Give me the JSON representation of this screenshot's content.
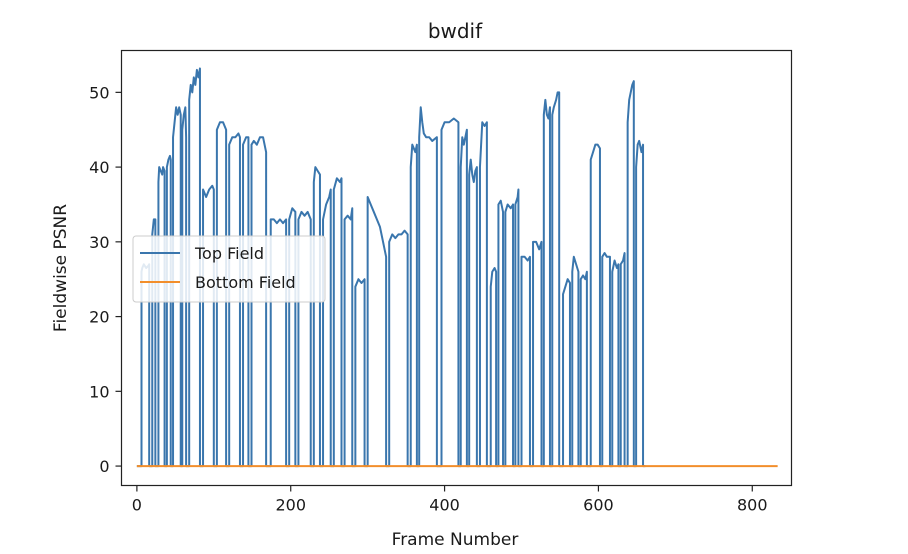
{
  "chart_data": {
    "type": "line",
    "title": "bwdif",
    "xlabel": "Frame Number",
    "ylabel": "Fieldwise PSNR",
    "xlim": [
      -20,
      851
    ],
    "ylim": [
      -2.6,
      55.6
    ],
    "xticks": [
      0,
      200,
      400,
      600,
      800
    ],
    "yticks": [
      0,
      10,
      20,
      30,
      40,
      50
    ],
    "grid": false,
    "legend_position": "center-left",
    "series": [
      {
        "name": "Top Field",
        "color": "#3a76ad",
        "points": [
          [
            0,
            0
          ],
          [
            1,
            0
          ],
          [
            2,
            0
          ],
          [
            3,
            0
          ],
          [
            4,
            0
          ],
          [
            5,
            0
          ],
          [
            6,
            0
          ],
          [
            6,
            26
          ],
          [
            7,
            26.5
          ],
          [
            9,
            27
          ],
          [
            12,
            26.5
          ],
          [
            15,
            26.8
          ],
          [
            16,
            27
          ],
          [
            16,
            0
          ],
          [
            20,
            0
          ],
          [
            20,
            31
          ],
          [
            22,
            33
          ],
          [
            24,
            33
          ],
          [
            24,
            0
          ],
          [
            28,
            0
          ],
          [
            28,
            38
          ],
          [
            29,
            40
          ],
          [
            33,
            39
          ],
          [
            34,
            40
          ],
          [
            36,
            39.5
          ],
          [
            36,
            0
          ],
          [
            39,
            0
          ],
          [
            39,
            40
          ],
          [
            41,
            41
          ],
          [
            43,
            41.5
          ],
          [
            44,
            41
          ],
          [
            44,
            0
          ],
          [
            47,
            0
          ],
          [
            47,
            44
          ],
          [
            49,
            46
          ],
          [
            51,
            48
          ],
          [
            53,
            47
          ],
          [
            55,
            48
          ],
          [
            57,
            47
          ],
          [
            57,
            0
          ],
          [
            59,
            0
          ],
          [
            59,
            45
          ],
          [
            61,
            47
          ],
          [
            63,
            48
          ],
          [
            64,
            44
          ],
          [
            64,
            0
          ],
          [
            68,
            0
          ],
          [
            68,
            49
          ],
          [
            70,
            51
          ],
          [
            72,
            50
          ],
          [
            74,
            52
          ],
          [
            76,
            51
          ],
          [
            78,
            53
          ],
          [
            80,
            52
          ],
          [
            82,
            53.2
          ],
          [
            82,
            0
          ],
          [
            86,
            0
          ],
          [
            86,
            37
          ],
          [
            90,
            36
          ],
          [
            94,
            37
          ],
          [
            98,
            37.5
          ],
          [
            100,
            37
          ],
          [
            100,
            0
          ],
          [
            104,
            0
          ],
          [
            104,
            45
          ],
          [
            108,
            46
          ],
          [
            112,
            46
          ],
          [
            116,
            45
          ],
          [
            116,
            0
          ],
          [
            120,
            0
          ],
          [
            120,
            43
          ],
          [
            124,
            44
          ],
          [
            128,
            44
          ],
          [
            132,
            44.5
          ],
          [
            134,
            44
          ],
          [
            134,
            0
          ],
          [
            138,
            0
          ],
          [
            138,
            43
          ],
          [
            142,
            44
          ],
          [
            145,
            44
          ],
          [
            145,
            0
          ],
          [
            149,
            0
          ],
          [
            149,
            43
          ],
          [
            152,
            43.5
          ],
          [
            156,
            43
          ],
          [
            160,
            44
          ],
          [
            164,
            44
          ],
          [
            166,
            43
          ],
          [
            168,
            42
          ],
          [
            168,
            0
          ],
          [
            174,
            0
          ],
          [
            174,
            33
          ],
          [
            178,
            33
          ],
          [
            182,
            32.5
          ],
          [
            186,
            33
          ],
          [
            190,
            32.5
          ],
          [
            194,
            33
          ],
          [
            194,
            0
          ],
          [
            198,
            0
          ],
          [
            198,
            33
          ],
          [
            202,
            34.5
          ],
          [
            206,
            34
          ],
          [
            206,
            0
          ],
          [
            210,
            0
          ],
          [
            210,
            33
          ],
          [
            214,
            34
          ],
          [
            218,
            33.5
          ],
          [
            222,
            34
          ],
          [
            226,
            33
          ],
          [
            226,
            0
          ],
          [
            230,
            0
          ],
          [
            230,
            38
          ],
          [
            232,
            40
          ],
          [
            235,
            39.5
          ],
          [
            238,
            39
          ],
          [
            238,
            0
          ],
          [
            242,
            0
          ],
          [
            242,
            33
          ],
          [
            246,
            35
          ],
          [
            250,
            36
          ],
          [
            252,
            37
          ],
          [
            252,
            0
          ],
          [
            256,
            0
          ],
          [
            256,
            37
          ],
          [
            260,
            38.5
          ],
          [
            264,
            38
          ],
          [
            266,
            38.5
          ],
          [
            266,
            0
          ],
          [
            270,
            0
          ],
          [
            270,
            33
          ],
          [
            274,
            33.5
          ],
          [
            278,
            33
          ],
          [
            280,
            34.5
          ],
          [
            280,
            0
          ],
          [
            284,
            0
          ],
          [
            284,
            24
          ],
          [
            288,
            25
          ],
          [
            292,
            24.5
          ],
          [
            296,
            25
          ],
          [
            296,
            0
          ],
          [
            300,
            0
          ],
          [
            300,
            36
          ],
          [
            304,
            35
          ],
          [
            308,
            34
          ],
          [
            312,
            33
          ],
          [
            316,
            32
          ],
          [
            320,
            30
          ],
          [
            324,
            28
          ],
          [
            324,
            0
          ],
          [
            328,
            0
          ],
          [
            328,
            30
          ],
          [
            332,
            31
          ],
          [
            336,
            30.5
          ],
          [
            340,
            31
          ],
          [
            344,
            31
          ],
          [
            348,
            31.5
          ],
          [
            352,
            31
          ],
          [
            352,
            0
          ],
          [
            356,
            0
          ],
          [
            356,
            40
          ],
          [
            358,
            43
          ],
          [
            362,
            42
          ],
          [
            364,
            43
          ],
          [
            364,
            0
          ],
          [
            367,
            0
          ],
          [
            367,
            44
          ],
          [
            369,
            48
          ],
          [
            371,
            46
          ],
          [
            373,
            44.5
          ],
          [
            376,
            44
          ],
          [
            380,
            44
          ],
          [
            384,
            43.5
          ],
          [
            390,
            44
          ],
          [
            390,
            0
          ],
          [
            396,
            0
          ],
          [
            396,
            45
          ],
          [
            400,
            46
          ],
          [
            406,
            46
          ],
          [
            412,
            46.5
          ],
          [
            418,
            46
          ],
          [
            418,
            0
          ],
          [
            421,
            0
          ],
          [
            421,
            40
          ],
          [
            423,
            44
          ],
          [
            425,
            43
          ],
          [
            427,
            44
          ],
          [
            429,
            45
          ],
          [
            429,
            0
          ],
          [
            432,
            0
          ],
          [
            432,
            39
          ],
          [
            434,
            41
          ],
          [
            436,
            39
          ],
          [
            438,
            38
          ],
          [
            440,
            39.5
          ],
          [
            442,
            40
          ],
          [
            442,
            0
          ],
          [
            446,
            0
          ],
          [
            446,
            40
          ],
          [
            449,
            46
          ],
          [
            452,
            45.5
          ],
          [
            455,
            46
          ],
          [
            455,
            0
          ],
          [
            460,
            0
          ],
          [
            460,
            24
          ],
          [
            462,
            26
          ],
          [
            465,
            26.5
          ],
          [
            467,
            26
          ],
          [
            467,
            0
          ],
          [
            470,
            0
          ],
          [
            470,
            35
          ],
          [
            473,
            35.5
          ],
          [
            476,
            34
          ],
          [
            476,
            0
          ],
          [
            479,
            0
          ],
          [
            479,
            34
          ],
          [
            482,
            35
          ],
          [
            486,
            34.5
          ],
          [
            489,
            35
          ],
          [
            489,
            0
          ],
          [
            492,
            0
          ],
          [
            492,
            35
          ],
          [
            495,
            36
          ],
          [
            496,
            37
          ],
          [
            496,
            0
          ],
          [
            500,
            0
          ],
          [
            500,
            28
          ],
          [
            504,
            28
          ],
          [
            508,
            27.5
          ],
          [
            511,
            28
          ],
          [
            511,
            0
          ],
          [
            515,
            0
          ],
          [
            515,
            30
          ],
          [
            519,
            30
          ],
          [
            523,
            29
          ],
          [
            526,
            30
          ],
          [
            526,
            0
          ],
          [
            529,
            0
          ],
          [
            529,
            47
          ],
          [
            531,
            49
          ],
          [
            533,
            47
          ],
          [
            535,
            46.5
          ],
          [
            537,
            48
          ],
          [
            537,
            0
          ],
          [
            540,
            0
          ],
          [
            540,
            47
          ],
          [
            542,
            48
          ],
          [
            545,
            49
          ],
          [
            547,
            50
          ],
          [
            549,
            50
          ],
          [
            549,
            0
          ],
          [
            554,
            0
          ],
          [
            554,
            23
          ],
          [
            557,
            24
          ],
          [
            560,
            25
          ],
          [
            563,
            24.5
          ],
          [
            563,
            0
          ],
          [
            566,
            0
          ],
          [
            566,
            26
          ],
          [
            568,
            28
          ],
          [
            571,
            27
          ],
          [
            574,
            26
          ],
          [
            574,
            0
          ],
          [
            577,
            0
          ],
          [
            577,
            25
          ],
          [
            580,
            25.5
          ],
          [
            583,
            25
          ],
          [
            585,
            26
          ],
          [
            585,
            0
          ],
          [
            590,
            0
          ],
          [
            590,
            41
          ],
          [
            593,
            42
          ],
          [
            596,
            43
          ],
          [
            599,
            43
          ],
          [
            602,
            42.5
          ],
          [
            602,
            0
          ],
          [
            605,
            0
          ],
          [
            605,
            28
          ],
          [
            608,
            28.5
          ],
          [
            611,
            28
          ],
          [
            615,
            28
          ],
          [
            615,
            0
          ],
          [
            618,
            0
          ],
          [
            618,
            26
          ],
          [
            621,
            27.5
          ],
          [
            624,
            26.5
          ],
          [
            626,
            27
          ],
          [
            626,
            0
          ],
          [
            629,
            0
          ],
          [
            629,
            27
          ],
          [
            632,
            27.5
          ],
          [
            634,
            28.5
          ],
          [
            634,
            0
          ],
          [
            638,
            0
          ],
          [
            638,
            46
          ],
          [
            640,
            49
          ],
          [
            642,
            50
          ],
          [
            644,
            51
          ],
          [
            646,
            51.5
          ],
          [
            646,
            0
          ],
          [
            649,
            0
          ],
          [
            649,
            40
          ],
          [
            651,
            43
          ],
          [
            653,
            43.5
          ],
          [
            656,
            42
          ],
          [
            658,
            43
          ],
          [
            658,
            0
          ],
          [
            661,
            0
          ],
          [
            661,
            0
          ]
        ]
      },
      {
        "name": "Bottom Field",
        "color": "#f28e2b",
        "points": [
          [
            0,
            0
          ],
          [
            833,
            0
          ]
        ]
      }
    ]
  }
}
